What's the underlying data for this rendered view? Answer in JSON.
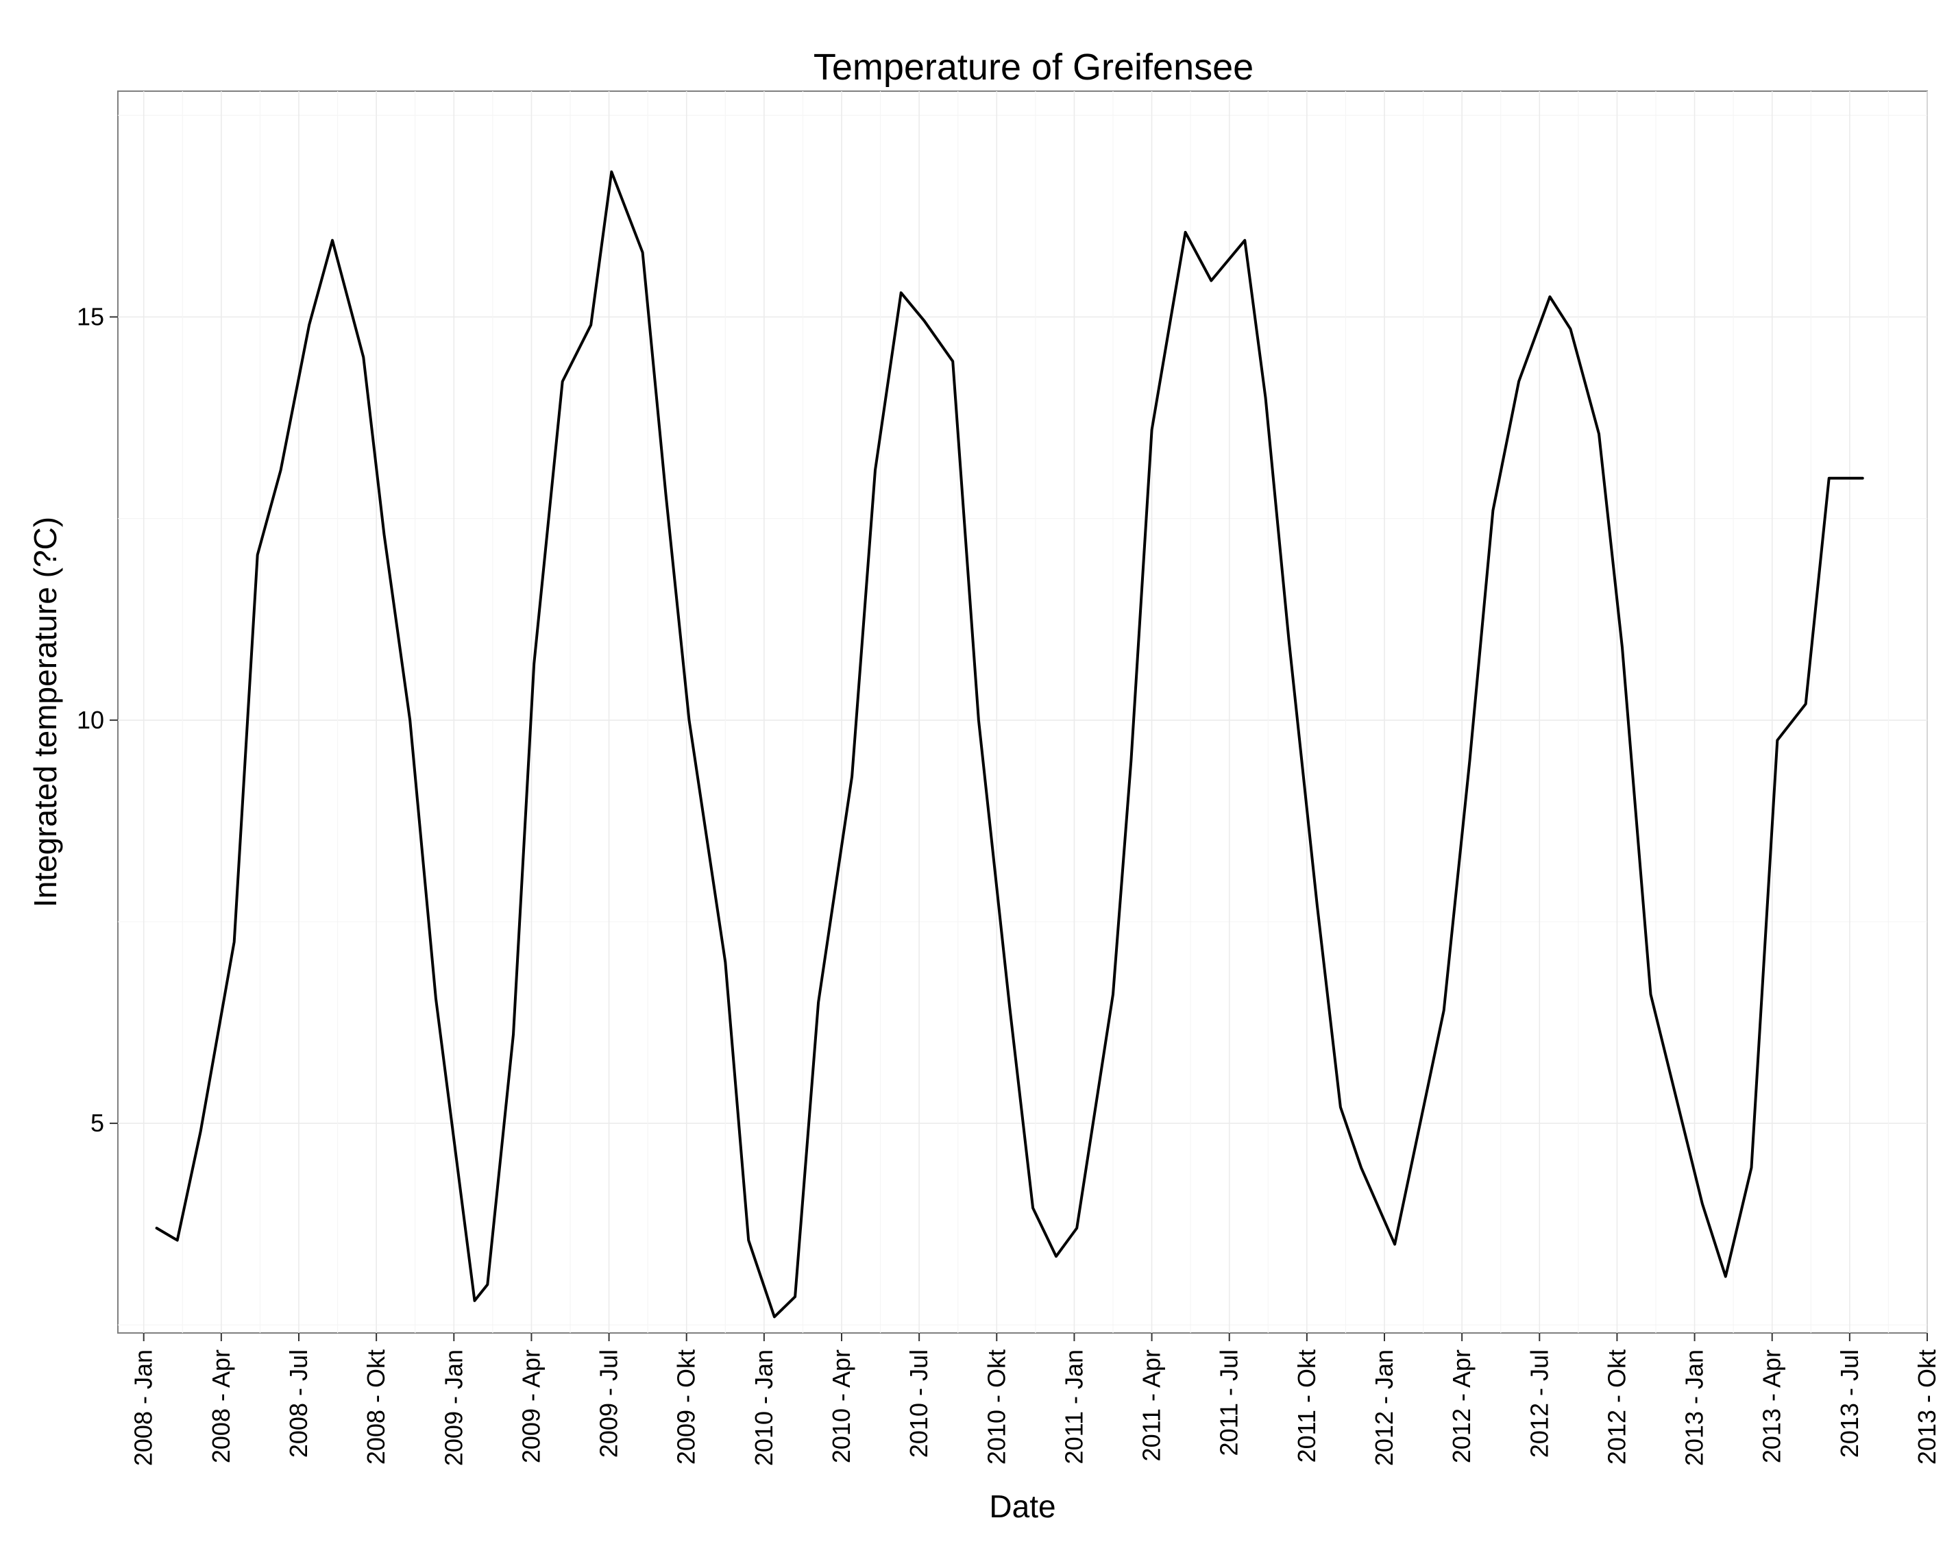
{
  "chart_data": {
    "type": "line",
    "title": "Temperature of Greifensee",
    "xlabel": "Date",
    "ylabel": "Integrated temperature (?C)",
    "ylim": [
      2.4,
      17.8
    ],
    "yticks": [
      5,
      10,
      15
    ],
    "ytick_labels": [
      "5",
      "10",
      "15"
    ],
    "x_range_months": [
      -1.0,
      69.0
    ],
    "xticks_month_index": [
      0,
      3,
      6,
      9,
      12,
      15,
      18,
      21,
      24,
      27,
      30,
      33,
      36,
      39,
      42,
      45,
      48,
      51,
      54,
      57,
      60,
      63,
      66,
      69
    ],
    "xtick_labels": [
      "2008 - Jan",
      "2008 - Apr",
      "2008 - Jul",
      "2008 - Okt",
      "2009 - Jan",
      "2009 - Apr",
      "2009 - Jul",
      "2009 - Okt",
      "2010 - Jan",
      "2010 - Apr",
      "2010 - Jul",
      "2010 - Okt",
      "2011 - Jan",
      "2011 - Apr",
      "2011 - Jul",
      "2011 - Okt",
      "2012 - Jan",
      "2012 - Apr",
      "2012 - Jul",
      "2012 - Okt",
      "2013 - Jan",
      "2013 - Apr",
      "2013 - Jul",
      "2013 - Okt"
    ],
    "grid": true,
    "x_unit_note": "x = months since 2008-Jan",
    "series": [
      {
        "name": "Integrated temperature",
        "color": "#000000",
        "x": [
          0.5,
          1.3,
          2.2,
          3.5,
          4.4,
          5.3,
          6.4,
          7.3,
          8.5,
          9.3,
          10.3,
          11.3,
          12.8,
          13.3,
          14.3,
          15.1,
          16.2,
          17.3,
          18.1,
          19.3,
          20.2,
          21.1,
          22.5,
          23.4,
          24.4,
          25.2,
          26.1,
          27.4,
          28.3,
          29.3,
          30.2,
          31.3,
          32.3,
          33.5,
          34.4,
          35.3,
          36.1,
          37.5,
          38.2,
          39.0,
          40.3,
          41.3,
          42.6,
          43.4,
          44.3,
          45.4,
          46.3,
          47.1,
          48.4,
          50.3,
          51.3,
          52.2,
          53.2,
          54.4,
          55.2,
          56.3,
          57.2,
          58.3,
          60.3,
          61.2,
          62.2,
          63.2,
          64.3,
          65.2,
          65.9,
          66.5
        ],
        "values": [
          3.7,
          3.55,
          4.9,
          7.25,
          12.05,
          13.1,
          14.9,
          15.95,
          14.5,
          12.3,
          10.0,
          6.55,
          2.8,
          3.0,
          6.1,
          10.7,
          14.2,
          14.9,
          16.8,
          15.8,
          12.8,
          10.0,
          7.0,
          3.55,
          2.6,
          2.85,
          6.5,
          9.3,
          13.1,
          15.3,
          14.95,
          14.45,
          10.0,
          6.45,
          3.95,
          3.35,
          3.7,
          6.6,
          9.5,
          13.6,
          16.05,
          15.45,
          15.95,
          14.0,
          11.0,
          7.7,
          5.2,
          4.45,
          3.5,
          6.4,
          9.5,
          12.6,
          14.2,
          15.25,
          14.85,
          13.55,
          10.9,
          6.6,
          4.0,
          3.1,
          4.45,
          9.75,
          10.2,
          13.0,
          13.0,
          13.0
        ]
      }
    ]
  }
}
